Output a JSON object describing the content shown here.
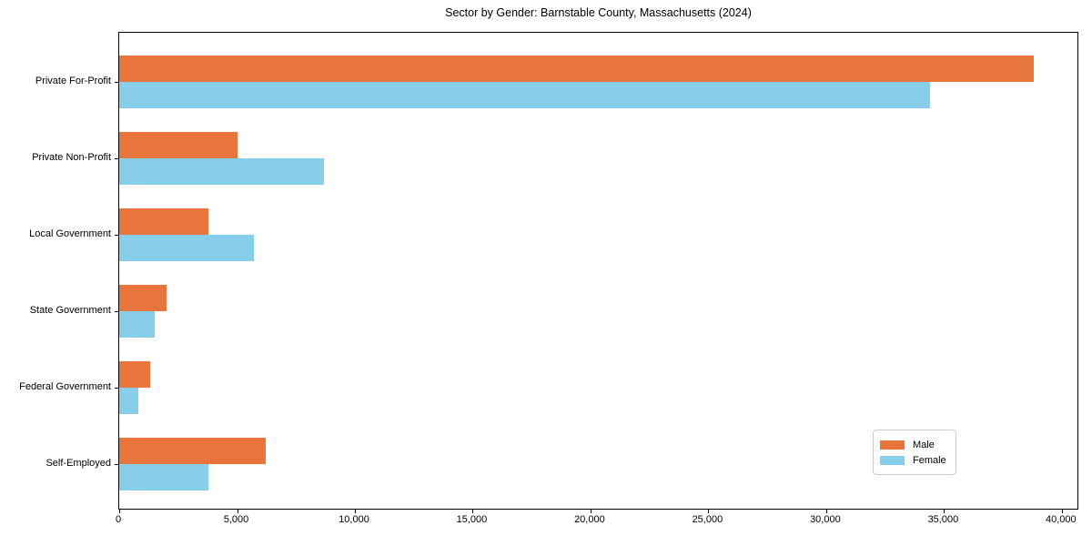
{
  "title": "Sector by Gender: Barnstable County, Massachusetts (2024)",
  "colors": {
    "male": "#E8763C",
    "female": "#87CEEB",
    "axis": "#000000",
    "legend_border": "#CCCCCC",
    "background": "#FFFFFF"
  },
  "legend": {
    "position": "lower right",
    "items": [
      {
        "label": "Male",
        "color": "#E8763C"
      },
      {
        "label": "Female",
        "color": "#87CEEB"
      }
    ]
  },
  "chart_data": {
    "type": "bar",
    "orientation": "horizontal",
    "title": "Sector by Gender: Barnstable County, Massachusetts (2024)",
    "xlabel": "",
    "ylabel": "",
    "categories": [
      "Private For-Profit",
      "Private Non-Profit",
      "Local Government",
      "State Government",
      "Federal Government",
      "Self-Employed"
    ],
    "series": [
      {
        "name": "Male",
        "color": "#E8763C",
        "values": [
          38800,
          5000,
          3800,
          2000,
          1300,
          6200
        ]
      },
      {
        "name": "Female",
        "color": "#87CEEB",
        "values": [
          34400,
          8700,
          5700,
          1500,
          800,
          3800
        ]
      }
    ],
    "xlim": [
      0,
      40740
    ],
    "xticks": [
      0,
      5000,
      10000,
      15000,
      20000,
      25000,
      30000,
      35000,
      40000
    ],
    "xtick_labels": [
      "0",
      "5,000",
      "10,000",
      "15,000",
      "20,000",
      "25,000",
      "30,000",
      "35,000",
      "40,000"
    ],
    "grid": false,
    "legend_position": "lower right"
  }
}
